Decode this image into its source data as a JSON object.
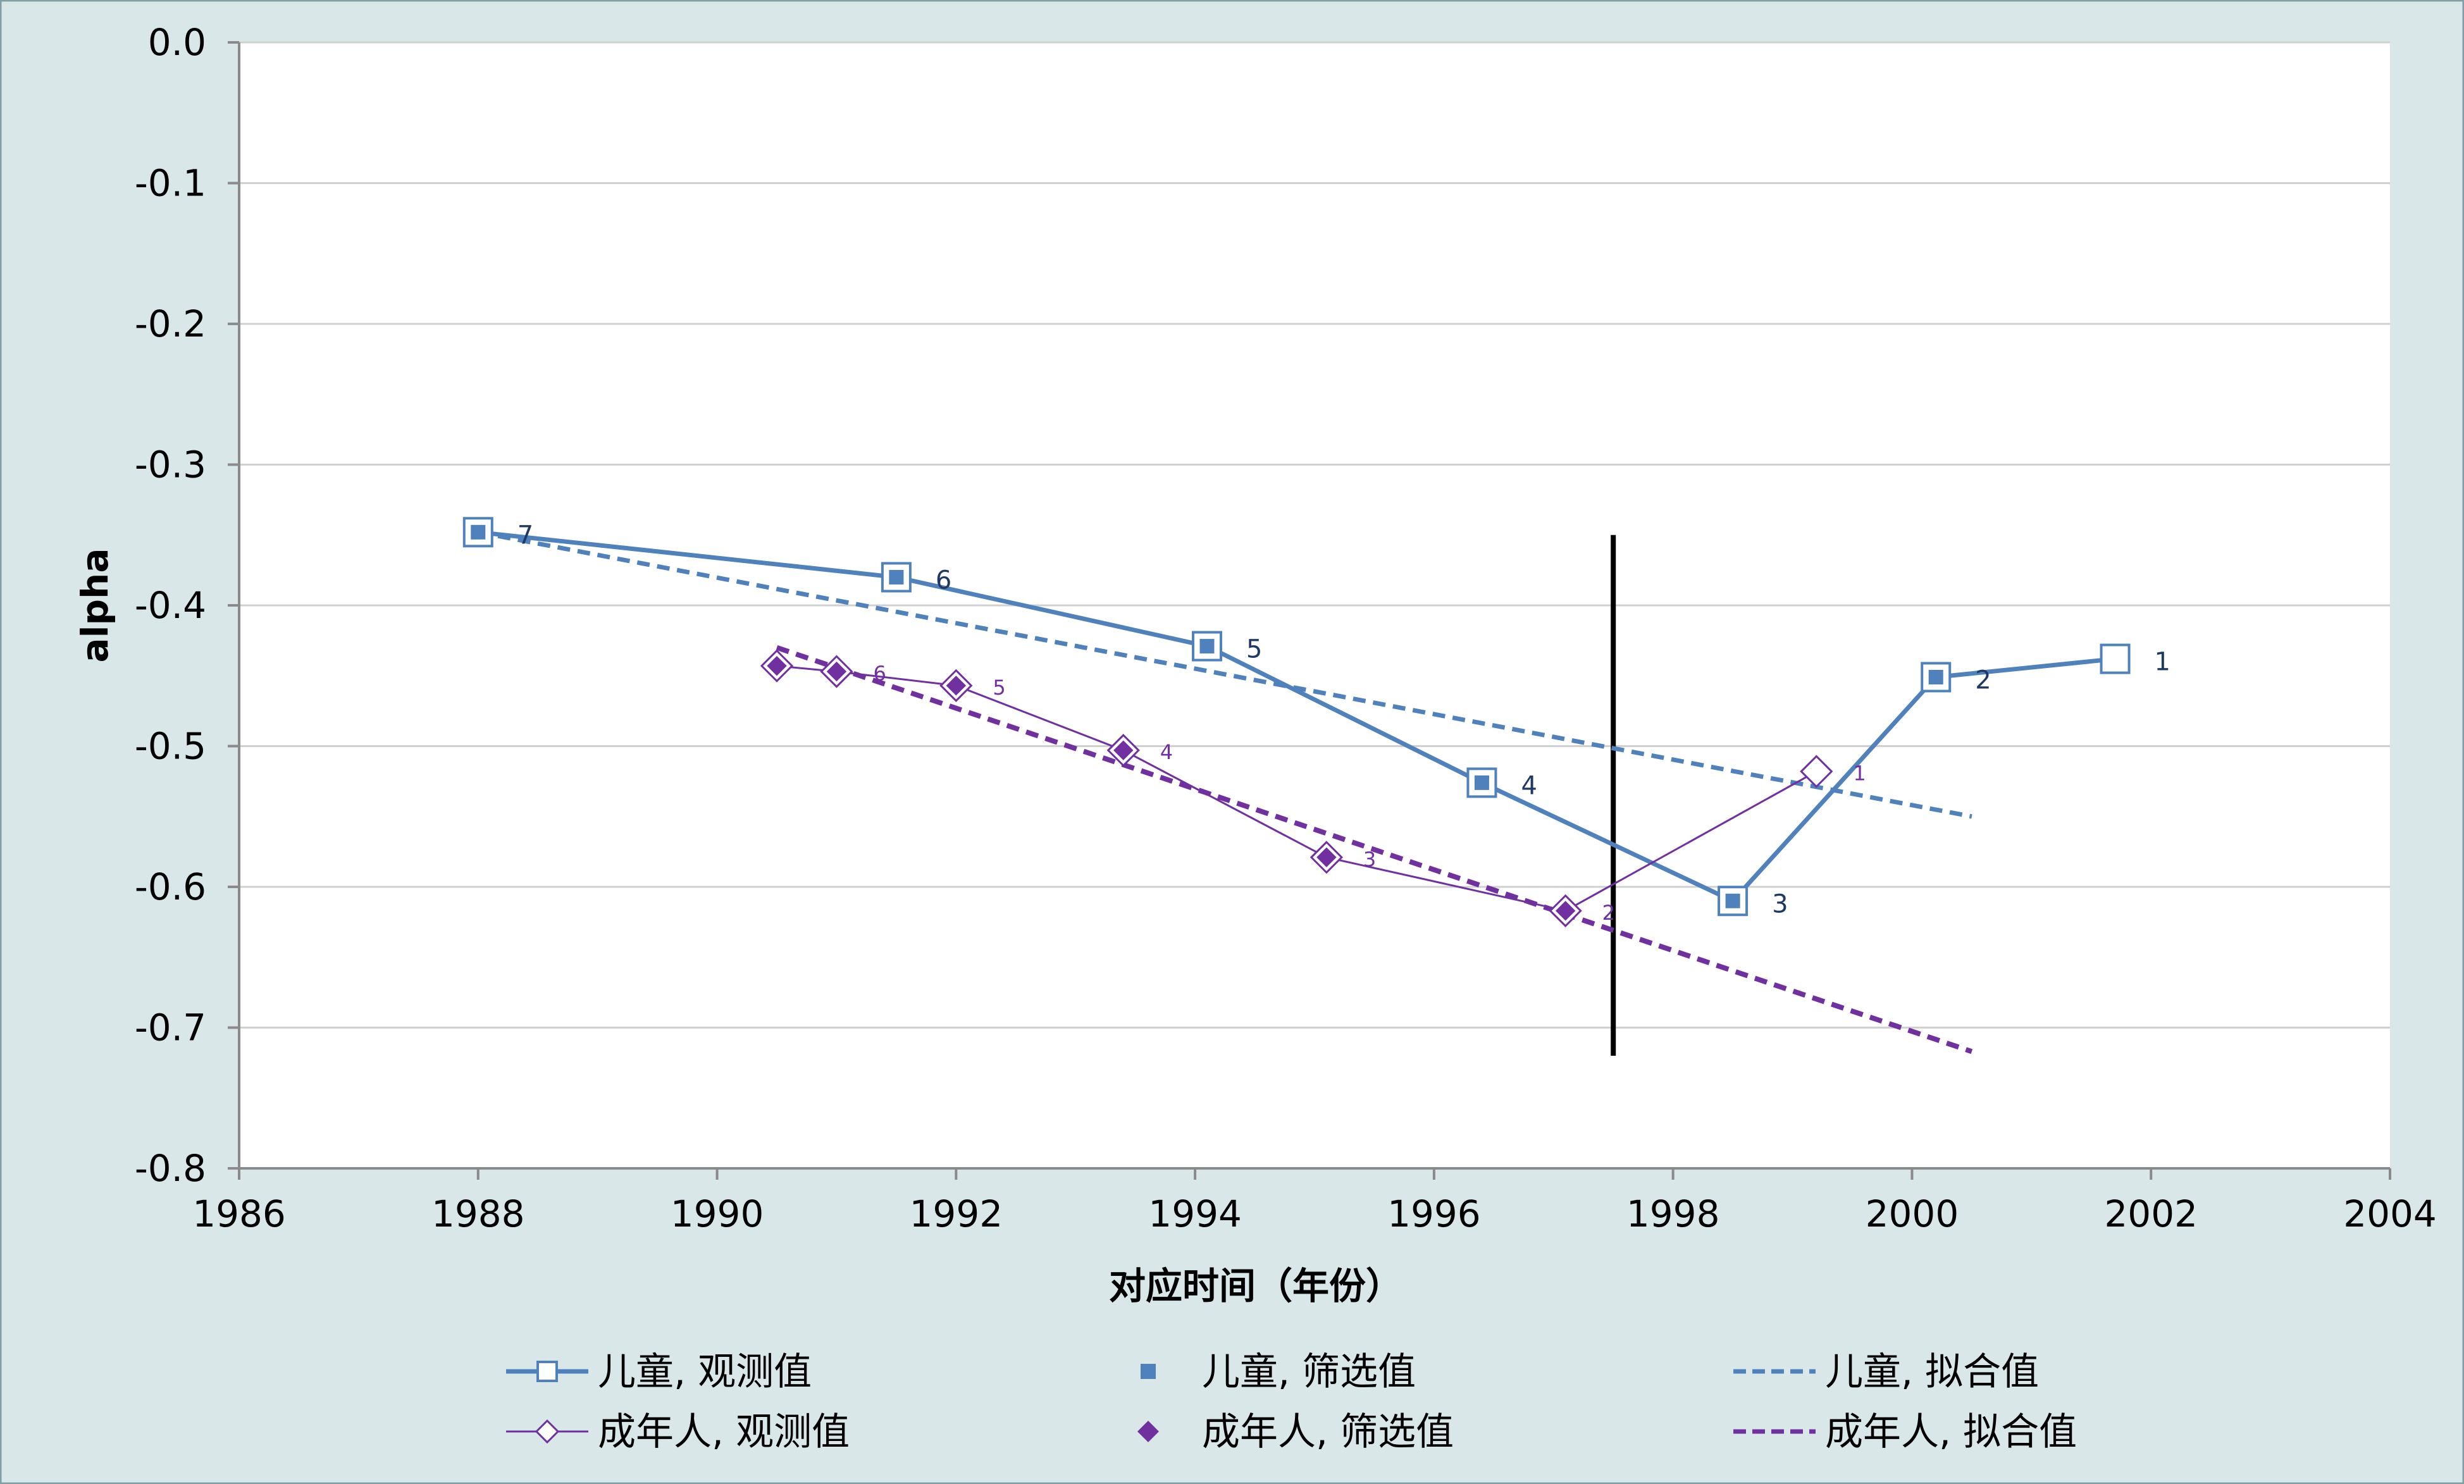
{
  "chart_data": {
    "type": "line",
    "xlabel": "对应时间（年份）",
    "ylabel": "alpha",
    "xlim": [
      1986,
      2004
    ],
    "ylim": [
      -0.8,
      0.0
    ],
    "x_ticks": [
      "1986",
      "1988",
      "1990",
      "1992",
      "1994",
      "1996",
      "1998",
      "2000",
      "2002",
      "2004"
    ],
    "y_ticks": [
      "0.0",
      "-0.1",
      "-0.2",
      "-0.3",
      "-0.4",
      "-0.5",
      "-0.6",
      "-0.7",
      "-0.8"
    ],
    "grid": "horizontal",
    "legend_position": "bottom",
    "vertical_marker": {
      "x": 1997.5,
      "y_range": [
        -0.35,
        -0.72
      ]
    },
    "series": [
      {
        "name": "儿童, 观测值",
        "color": "#4f81bd",
        "points": [
          {
            "x": 1988.0,
            "y": -0.348,
            "label": "7"
          },
          {
            "x": 1991.5,
            "y": -0.38,
            "label": "6"
          },
          {
            "x": 1994.1,
            "y": -0.429,
            "label": "5"
          },
          {
            "x": 1996.4,
            "y": -0.526,
            "label": "4"
          },
          {
            "x": 1998.5,
            "y": -0.61,
            "label": "3"
          },
          {
            "x": 2000.2,
            "y": -0.451,
            "label": "2"
          },
          {
            "x": 2001.7,
            "y": -0.438,
            "label": "1"
          }
        ]
      },
      {
        "name": "儿童, 筛选值",
        "color": "#4f81bd",
        "points": [
          {
            "x": 1988.0,
            "y": -0.348
          },
          {
            "x": 1991.5,
            "y": -0.38
          },
          {
            "x": 1994.1,
            "y": -0.429
          },
          {
            "x": 1996.4,
            "y": -0.526
          },
          {
            "x": 1998.5,
            "y": -0.61
          },
          {
            "x": 2000.2,
            "y": -0.451
          }
        ]
      },
      {
        "name": "儿童, 拟合值",
        "color": "#4f81bd",
        "points": [
          {
            "x": 1988.0,
            "y": -0.348
          },
          {
            "x": 2000.5,
            "y": -0.55
          }
        ]
      },
      {
        "name": "成年人, 观测值",
        "color": "#7030a0",
        "points": [
          {
            "x": 1990.5,
            "y": -0.443
          },
          {
            "x": 1991.0,
            "y": -0.447,
            "label": "6"
          },
          {
            "x": 1992.0,
            "y": -0.457,
            "label": "5"
          },
          {
            "x": 1993.4,
            "y": -0.503,
            "label": "4"
          },
          {
            "x": 1995.1,
            "y": -0.579,
            "label": "3"
          },
          {
            "x": 1997.1,
            "y": -0.617,
            "label": "2"
          },
          {
            "x": 1999.2,
            "y": -0.518,
            "label": "1"
          }
        ]
      },
      {
        "name": "成年人, 筛选值",
        "color": "#7030a0",
        "points": [
          {
            "x": 1990.5,
            "y": -0.443
          },
          {
            "x": 1991.0,
            "y": -0.447
          },
          {
            "x": 1992.0,
            "y": -0.457
          },
          {
            "x": 1993.4,
            "y": -0.503
          },
          {
            "x": 1995.1,
            "y": -0.579
          },
          {
            "x": 1997.1,
            "y": -0.617
          }
        ]
      },
      {
        "name": "成年人, 拟合值",
        "color": "#7030a0",
        "points": [
          {
            "x": 1990.5,
            "y": -0.43
          },
          {
            "x": 2000.5,
            "y": -0.717
          }
        ]
      }
    ]
  }
}
